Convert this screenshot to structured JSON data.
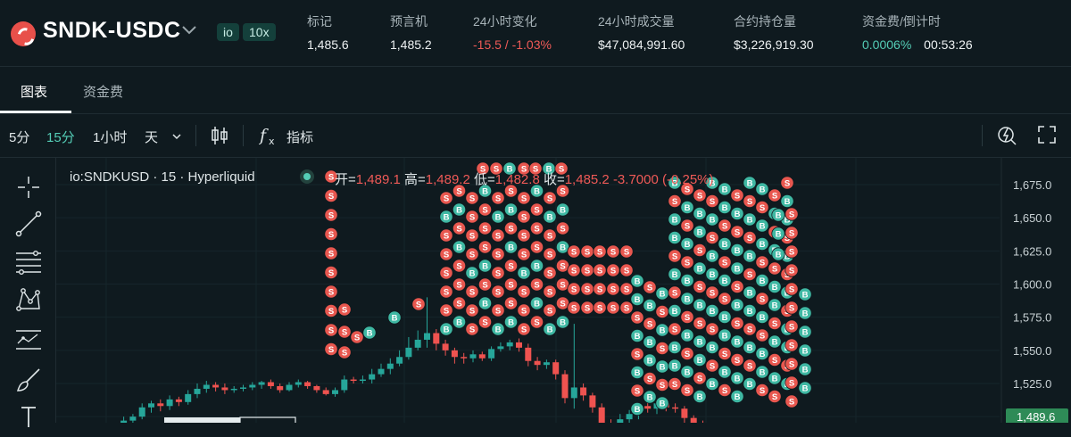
{
  "header": {
    "pair": "SNDK-USDC",
    "badges": [
      "io",
      "10x"
    ],
    "stats": [
      {
        "label": "标记",
        "value": "1,485.6"
      },
      {
        "label": "预言机",
        "value": "1,485.2"
      },
      {
        "label": "24小时变化",
        "value": "-15.5 / -1.03%"
      },
      {
        "label": "24小时成交量",
        "value": "$47,084,991.60"
      },
      {
        "label": "合约持仓量",
        "value": "$3,226,919.30"
      },
      {
        "label": "资金费/倒计时",
        "value": "0.0006%",
        "value2": "00:53:26"
      }
    ]
  },
  "tabs": [
    {
      "label": "图表"
    },
    {
      "label": "资金费"
    }
  ],
  "toolbar": {
    "intervals": [
      "5分",
      "15分",
      "1小时",
      "天"
    ],
    "indicators_label": "指标"
  },
  "sidebar_tools": [
    "crosshair-icon",
    "trendline-icon",
    "fib-icon",
    "pattern-icon",
    "projection-icon",
    "brush-icon",
    "text-icon"
  ],
  "legend": {
    "symbol": "io:SNDKUSD · 15 · Hyperliquid",
    "open_label": "开=",
    "open": "1,489.1",
    "high_label": "高=",
    "high": "1,489.2",
    "low_label": "低=",
    "low": "1,482.8",
    "close_label": "收=",
    "close": "1,485.2",
    "change": "-3.7000 (-0.25%)"
  },
  "colors": {
    "up": "#26a69a",
    "down": "#ef5350",
    "bg": "#0f1a1f",
    "buy_marker": "#3fb8a3",
    "sell_marker": "#e8574f"
  },
  "chart_data": {
    "type": "candlestick",
    "price_axis": {
      "ticks": [
        "1,675.0",
        "1,650.0",
        "1,625.0",
        "1,600.0",
        "1,575.0",
        "1,550.0",
        "1,525.0"
      ],
      "current_price": "1,489.6",
      "range": [
        1480,
        1682
      ]
    },
    "candles": [
      {
        "o": 1489,
        "c": 1491,
        "h": 1493,
        "l": 1487
      },
      {
        "o": 1491,
        "c": 1493,
        "h": 1495,
        "l": 1489
      },
      {
        "o": 1493,
        "c": 1497,
        "h": 1500,
        "l": 1490
      },
      {
        "o": 1497,
        "c": 1500,
        "h": 1502,
        "l": 1494
      },
      {
        "o": 1500,
        "c": 1507,
        "h": 1510,
        "l": 1498
      },
      {
        "o": 1507,
        "c": 1510,
        "h": 1512,
        "l": 1503
      },
      {
        "o": 1510,
        "c": 1508,
        "h": 1513,
        "l": 1504
      },
      {
        "o": 1508,
        "c": 1513,
        "h": 1516,
        "l": 1505
      },
      {
        "o": 1513,
        "c": 1511,
        "h": 1515,
        "l": 1508
      },
      {
        "o": 1511,
        "c": 1517,
        "h": 1520,
        "l": 1509
      },
      {
        "o": 1517,
        "c": 1521,
        "h": 1525,
        "l": 1514
      },
      {
        "o": 1521,
        "c": 1524,
        "h": 1527,
        "l": 1518
      },
      {
        "o": 1524,
        "c": 1522,
        "h": 1526,
        "l": 1519
      },
      {
        "o": 1522,
        "c": 1520,
        "h": 1525,
        "l": 1517
      },
      {
        "o": 1520,
        "c": 1521,
        "h": 1523,
        "l": 1518
      },
      {
        "o": 1521,
        "c": 1522,
        "h": 1524,
        "l": 1519
      },
      {
        "o": 1522,
        "c": 1524,
        "h": 1526,
        "l": 1520
      },
      {
        "o": 1524,
        "c": 1526,
        "h": 1527,
        "l": 1521
      },
      {
        "o": 1526,
        "c": 1523,
        "h": 1528,
        "l": 1521
      },
      {
        "o": 1523,
        "c": 1520,
        "h": 1525,
        "l": 1518
      },
      {
        "o": 1520,
        "c": 1524,
        "h": 1526,
        "l": 1519
      },
      {
        "o": 1524,
        "c": 1526,
        "h": 1528,
        "l": 1522
      },
      {
        "o": 1526,
        "c": 1523,
        "h": 1527,
        "l": 1521
      },
      {
        "o": 1523,
        "c": 1520,
        "h": 1524,
        "l": 1518
      },
      {
        "o": 1520,
        "c": 1517,
        "h": 1522,
        "l": 1516
      },
      {
        "o": 1517,
        "c": 1520,
        "h": 1522,
        "l": 1515
      },
      {
        "o": 1520,
        "c": 1528,
        "h": 1531,
        "l": 1518
      },
      {
        "o": 1528,
        "c": 1527,
        "h": 1530,
        "l": 1525
      },
      {
        "o": 1527,
        "c": 1528,
        "h": 1531,
        "l": 1525
      },
      {
        "o": 1528,
        "c": 1532,
        "h": 1536,
        "l": 1525
      },
      {
        "o": 1532,
        "c": 1536,
        "h": 1540,
        "l": 1530
      },
      {
        "o": 1536,
        "c": 1540,
        "h": 1544,
        "l": 1532
      },
      {
        "o": 1540,
        "c": 1545,
        "h": 1550,
        "l": 1538
      },
      {
        "o": 1545,
        "c": 1552,
        "h": 1560,
        "l": 1543
      },
      {
        "o": 1552,
        "c": 1558,
        "h": 1565,
        "l": 1550
      },
      {
        "o": 1558,
        "c": 1563,
        "h": 1590,
        "l": 1552
      },
      {
        "o": 1563,
        "c": 1555,
        "h": 1566,
        "l": 1550
      },
      {
        "o": 1555,
        "c": 1550,
        "h": 1558,
        "l": 1546
      },
      {
        "o": 1550,
        "c": 1545,
        "h": 1552,
        "l": 1540
      },
      {
        "o": 1545,
        "c": 1544,
        "h": 1548,
        "l": 1540
      },
      {
        "o": 1544,
        "c": 1547,
        "h": 1550,
        "l": 1541
      },
      {
        "o": 1547,
        "c": 1544,
        "h": 1549,
        "l": 1542
      },
      {
        "o": 1544,
        "c": 1551,
        "h": 1553,
        "l": 1542
      },
      {
        "o": 1551,
        "c": 1553,
        "h": 1556,
        "l": 1549
      },
      {
        "o": 1553,
        "c": 1556,
        "h": 1558,
        "l": 1550
      },
      {
        "o": 1556,
        "c": 1552,
        "h": 1559,
        "l": 1549
      },
      {
        "o": 1552,
        "c": 1542,
        "h": 1555,
        "l": 1538
      },
      {
        "o": 1542,
        "c": 1539,
        "h": 1545,
        "l": 1535
      },
      {
        "o": 1539,
        "c": 1541,
        "h": 1543,
        "l": 1536
      },
      {
        "o": 1541,
        "c": 1532,
        "h": 1543,
        "l": 1528
      },
      {
        "o": 1532,
        "c": 1514,
        "h": 1535,
        "l": 1510
      },
      {
        "o": 1514,
        "c": 1522,
        "h": 1570,
        "l": 1506
      },
      {
        "o": 1522,
        "c": 1516,
        "h": 1525,
        "l": 1512
      },
      {
        "o": 1516,
        "c": 1507,
        "h": 1518,
        "l": 1503
      },
      {
        "o": 1507,
        "c": 1495,
        "h": 1510,
        "l": 1480
      },
      {
        "o": 1495,
        "c": 1490,
        "h": 1498,
        "l": 1485
      },
      {
        "o": 1490,
        "c": 1498,
        "h": 1502,
        "l": 1488
      },
      {
        "o": 1498,
        "c": 1502,
        "h": 1505,
        "l": 1494
      },
      {
        "o": 1502,
        "c": 1508,
        "h": 1510,
        "l": 1498
      },
      {
        "o": 1508,
        "c": 1506,
        "h": 1512,
        "l": 1503
      },
      {
        "o": 1506,
        "c": 1510,
        "h": 1512,
        "l": 1502
      },
      {
        "o": 1510,
        "c": 1507,
        "h": 1512,
        "l": 1504
      },
      {
        "o": 1507,
        "c": 1506,
        "h": 1510,
        "l": 1503
      },
      {
        "o": 1506,
        "c": 1499,
        "h": 1508,
        "l": 1495
      },
      {
        "o": 1499,
        "c": 1495,
        "h": 1501,
        "l": 1490
      },
      {
        "o": 1495,
        "c": 1492,
        "h": 1497,
        "l": 1488
      }
    ]
  }
}
